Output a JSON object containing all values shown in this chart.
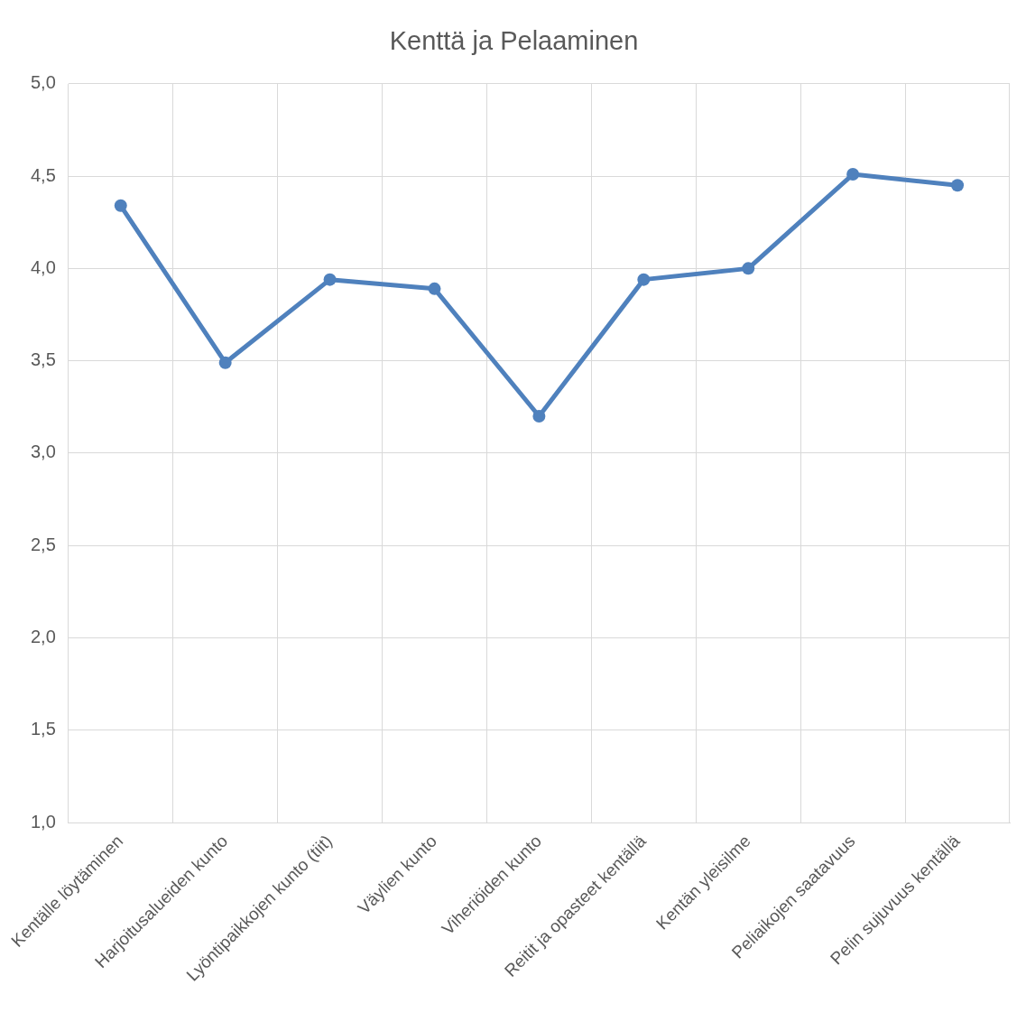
{
  "chart_data": {
    "type": "line",
    "title": "Kenttä ja Pelaaminen",
    "categories": [
      "Kentälle löytäminen",
      "Harjoitusalueiden kunto",
      "Lyöntipaikkojen kunto (tiit)",
      "Väylien kunto",
      "Viheriöiden kunto",
      "Reitit ja opasteet kentällä",
      "Kentän yleisilme",
      "Peliaikojen saatavuus",
      "Pelin sujuvuus kentällä"
    ],
    "series": [
      {
        "color": "#4f81bd",
        "values": [
          4.34,
          3.49,
          3.94,
          3.89,
          3.2,
          3.94,
          4.0,
          4.51,
          4.45
        ]
      }
    ],
    "ylim": [
      1,
      5
    ],
    "yticks": [
      {
        "value": 1,
        "label": "1,0"
      },
      {
        "value": 1.5,
        "label": "1,5"
      },
      {
        "value": 2,
        "label": "2,0"
      },
      {
        "value": 2.5,
        "label": "2,5"
      },
      {
        "value": 3,
        "label": "3,0"
      },
      {
        "value": 3.5,
        "label": "3,5"
      },
      {
        "value": 4,
        "label": "4,0"
      },
      {
        "value": 4.5,
        "label": "4,5"
      },
      {
        "value": 5,
        "label": "5,0"
      }
    ],
    "grid": true,
    "legend": false,
    "marker": "circle",
    "line_style": "solid"
  }
}
